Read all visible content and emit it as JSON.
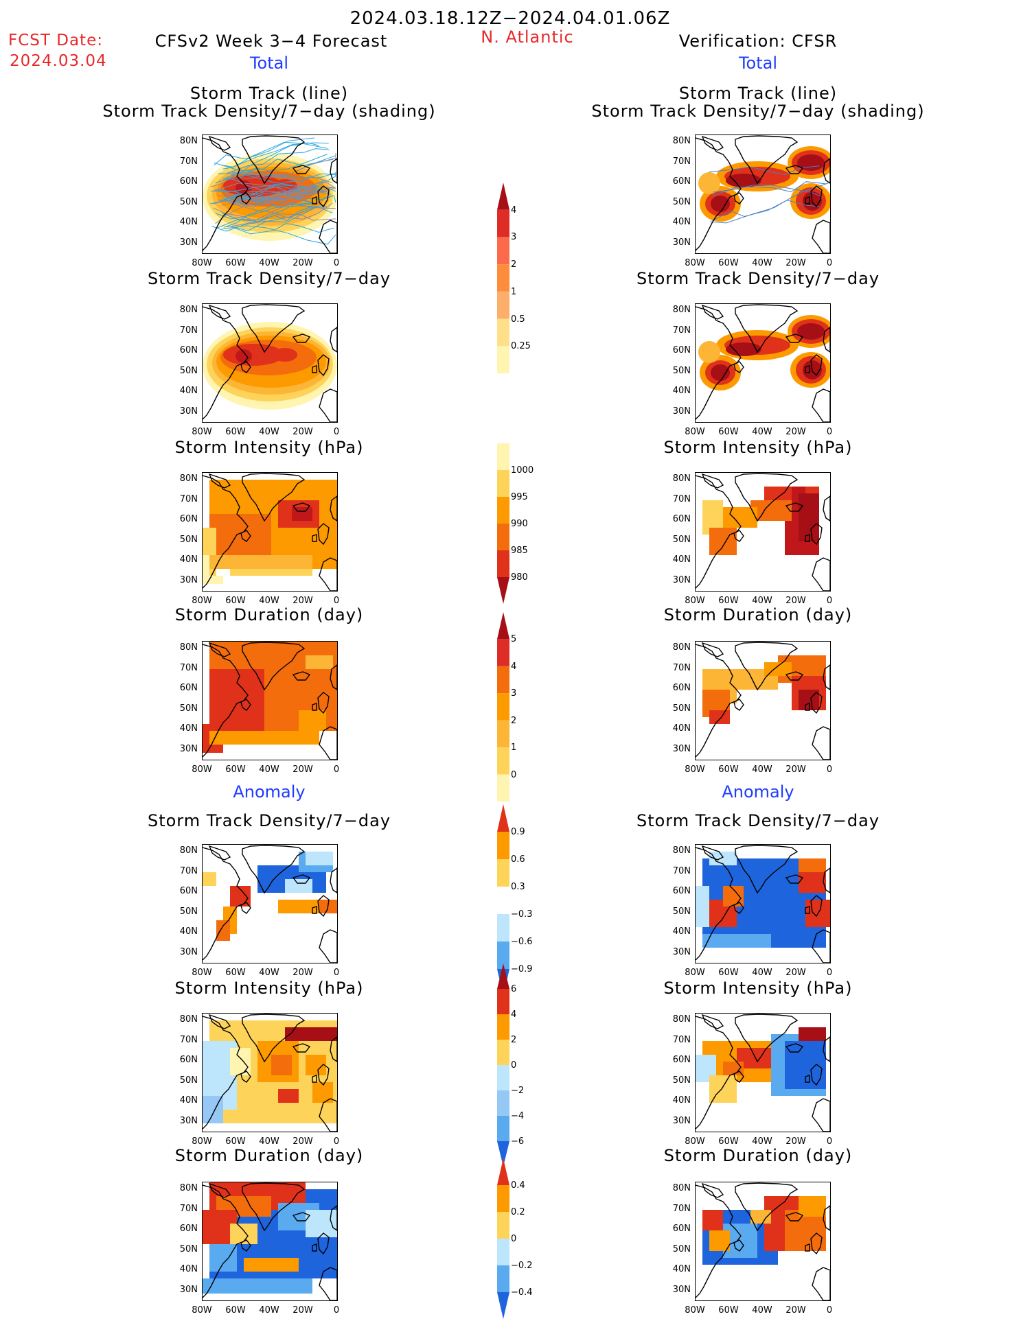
{
  "header": {
    "date_range": "2024.03.18.12Z−2024.04.01.06Z",
    "fcst_date_label": "FCST Date:",
    "fcst_date_value": "2024.03.04",
    "model_title": "CFSv2 Week 3−4 Forecast",
    "region": "N. Atlantic",
    "verification": "Verification: CFSR",
    "total_left": "Total",
    "total_right": "Total",
    "anomaly_left": "Anomaly",
    "anomaly_right": "Anomaly"
  },
  "panels": {
    "track_line": "Storm Track (line)",
    "track_shading": "Storm Track Density/7−day (shading)",
    "density": "Storm Track Density/7−day",
    "intensity": "Storm Intensity (hPa)",
    "duration": "Storm Duration (day)"
  },
  "axes": {
    "lat_labels": [
      "80N",
      "70N",
      "60N",
      "50N",
      "40N",
      "30N"
    ],
    "lon_labels": [
      "80W",
      "60W",
      "40W",
      "20W",
      "0"
    ]
  },
  "colorbars": {
    "density_total": {
      "labels": [
        "4",
        "3",
        "2",
        "1",
        "0.5",
        "0.25"
      ],
      "colors": [
        "#a50f15",
        "#de2d26",
        "#fb6a4a",
        "#fd8d3c",
        "#fdae6b",
        "#fee08b",
        "#fff5b0"
      ]
    },
    "intensity_total": {
      "labels": [
        "1000",
        "995",
        "990",
        "985",
        "980"
      ],
      "colors": [
        "#fff5b0",
        "#fdd35a",
        "#fd9a00",
        "#f46d0d",
        "#e0321a",
        "#a50f15"
      ]
    },
    "duration_total": {
      "labels": [
        "5",
        "4",
        "3",
        "2",
        "1",
        "0"
      ],
      "colors": [
        "#a50f15",
        "#de2d26",
        "#f46d0d",
        "#fd9a00",
        "#fdb536",
        "#fdd35a",
        "#fff5b0"
      ]
    },
    "density_anom": {
      "labels": [
        "0.9",
        "0.6",
        "0.3",
        "−0.3",
        "−0.6",
        "−0.9"
      ],
      "colors": [
        "#e0321a",
        "#fd9a00",
        "#fdd35a",
        "#ffffff",
        "#bde5fb",
        "#5aaaf0",
        "#1e64dc"
      ]
    },
    "intensity_anom": {
      "labels": [
        "6",
        "4",
        "2",
        "0",
        "−2",
        "−4",
        "−6"
      ],
      "colors": [
        "#a50f15",
        "#e0321a",
        "#fd9a00",
        "#fdd35a",
        "#bde5fb",
        "#96c8f5",
        "#5aaaf0",
        "#1e64dc"
      ]
    },
    "duration_anom": {
      "labels": [
        "0.4",
        "0.2",
        "0",
        "−0.2",
        "−0.4"
      ],
      "colors": [
        "#e0321a",
        "#fd9a00",
        "#fdd35a",
        "#bde5fb",
        "#5aaaf0",
        "#1e64dc"
      ]
    }
  }
}
